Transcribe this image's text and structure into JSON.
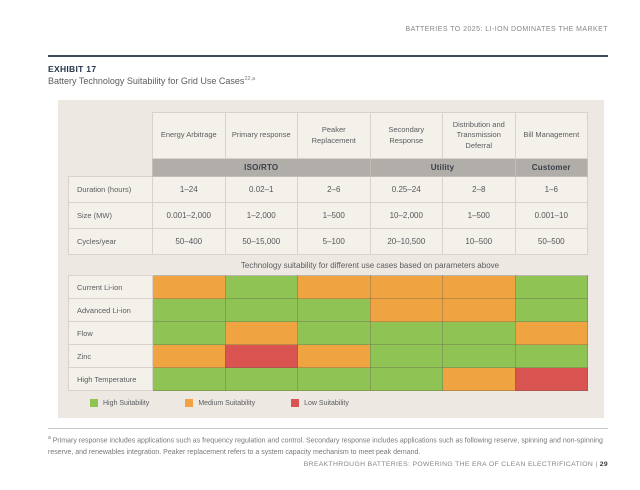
{
  "page": {
    "header_right": "BATTERIES TO 2025: LI-ION DOMINATES THE MARKET",
    "footer": {
      "text": "BREAKTHROUGH BATTERIES: POWERING THE ERA OF CLEAN ELECTRIFICATION",
      "separator": "|",
      "page_number": "29"
    }
  },
  "exhibit": {
    "label": "EXHIBIT 17",
    "title": "Battery Technology Suitability for Grid Use Cases",
    "title_superscript": "22,a"
  },
  "table": {
    "columns": [
      "Energy Arbitrage",
      "Primary response",
      "Peaker Replacement",
      "Secondary Response",
      "Distribution and Transmission Deferral",
      "Bill Management"
    ],
    "groups": [
      {
        "label": "ISO/RTO",
        "span": 3
      },
      {
        "label": "Utility",
        "span": 2
      },
      {
        "label": "Customer",
        "span": 1
      }
    ],
    "parameters": [
      {
        "label": "Duration (hours)",
        "values": [
          "1–24",
          "0.02–1",
          "2–6",
          "0.25–24",
          "2–8",
          "1–6"
        ]
      },
      {
        "label": "Size (MW)",
        "values": [
          "0.001–2,000",
          "1–2,000",
          "1–500",
          "10–2,000",
          "1–500",
          "0.001–10"
        ]
      },
      {
        "label": "Cycles/year",
        "values": [
          "50–400",
          "50–15,000",
          "5–100",
          "20–10,500",
          "10–500",
          "50–500"
        ]
      }
    ],
    "note": "Technology suitability for different use cases based on parameters above",
    "technologies": [
      {
        "label": "Current Li-ion",
        "suitability": [
          "medium",
          "high",
          "medium",
          "medium",
          "medium",
          "high"
        ]
      },
      {
        "label": "Advanced Li-ion",
        "suitability": [
          "high",
          "high",
          "high",
          "medium",
          "medium",
          "high"
        ]
      },
      {
        "label": "Flow",
        "suitability": [
          "high",
          "medium",
          "high",
          "high",
          "high",
          "medium"
        ]
      },
      {
        "label": "Zinc",
        "suitability": [
          "medium",
          "low",
          "medium",
          "high",
          "high",
          "high"
        ]
      },
      {
        "label": "High Temperature",
        "suitability": [
          "high",
          "high",
          "high",
          "high",
          "medium",
          "low"
        ]
      }
    ],
    "suitability_colors": {
      "high": "#8FC353",
      "medium": "#F0A441",
      "low": "#D95350"
    },
    "legend": [
      {
        "label": "High Suitability",
        "color": "#8FC353"
      },
      {
        "label": "Medium Suitability",
        "color": "#F0A441"
      },
      {
        "label": "Low Suitability",
        "color": "#D95350"
      }
    ]
  },
  "footnote": {
    "marker": "a",
    "text": "Primary response includes applications such as frequency regulation and control. Secondary response includes applications such as following reserve, spinning and non-spinning reserve, and renewables integration. Peaker replacement refers to a system capacity mechanism to meet peak demand."
  }
}
